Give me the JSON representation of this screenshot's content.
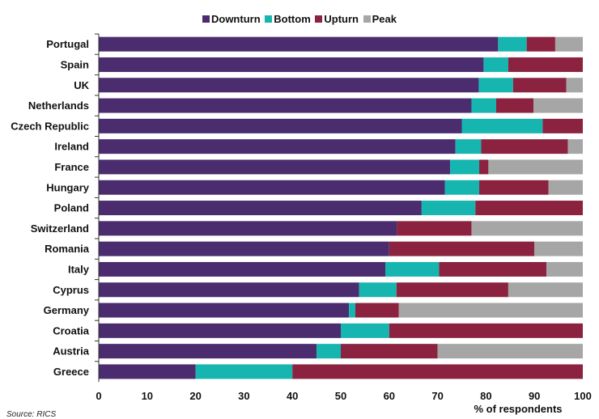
{
  "chart_data": {
    "type": "bar",
    "orientation": "horizontal",
    "stacked": true,
    "categories": [
      "Portugal",
      "Spain",
      "UK",
      "Netherlands",
      "Czech Republic",
      "Ireland",
      "France",
      "Hungary",
      "Poland",
      "Switzerland",
      "Romania",
      "Italy",
      "Cyprus",
      "Germany",
      "Croatia",
      "Austria",
      "Greece"
    ],
    "series": [
      {
        "name": "Downturn",
        "color": "#4b2c6e",
        "values": [
          82.5,
          79.5,
          78.5,
          77,
          75,
          73.7,
          72.6,
          71.5,
          66.7,
          61.6,
          60,
          59.2,
          53.8,
          51.7,
          50,
          45,
          20
        ]
      },
      {
        "name": "Bottom",
        "color": "#16b5b0",
        "values": [
          5.9,
          5.1,
          7.1,
          5.1,
          16.7,
          5.3,
          6.0,
          7.1,
          11.1,
          0,
          0,
          11.1,
          7.7,
          1.3,
          10,
          5,
          20
        ]
      },
      {
        "name": "Upturn",
        "color": "#8b2340",
        "values": [
          5.9,
          15.4,
          11.0,
          7.7,
          8.3,
          17.9,
          1.9,
          14.3,
          22.2,
          15.4,
          30,
          22.2,
          23.1,
          9.0,
          40,
          20,
          60
        ]
      },
      {
        "name": "Peak",
        "color": "#a6a6a6",
        "values": [
          5.7,
          0,
          3.4,
          10.2,
          0,
          3.1,
          19.5,
          7.1,
          0,
          23.0,
          10,
          7.5,
          15.4,
          38.0,
          0,
          30,
          0
        ]
      }
    ],
    "xlim": [
      0,
      100
    ],
    "xticks": [
      "0",
      "10",
      "20",
      "30",
      "40",
      "50",
      "60",
      "70",
      "80",
      "90",
      "100"
    ],
    "xlabel": "% of respondents",
    "ylabel": "",
    "title": "",
    "legend_position": "top-center",
    "grid": false
  },
  "legend": {
    "items": [
      {
        "label": "Downturn",
        "color": "#4b2c6e"
      },
      {
        "label": "Bottom",
        "color": "#16b5b0"
      },
      {
        "label": "Upturn",
        "color": "#8b2340"
      },
      {
        "label": "Peak",
        "color": "#a6a6a6"
      }
    ]
  },
  "source": "Source: RICS",
  "axis": {
    "xlabel": "% of respondents"
  }
}
